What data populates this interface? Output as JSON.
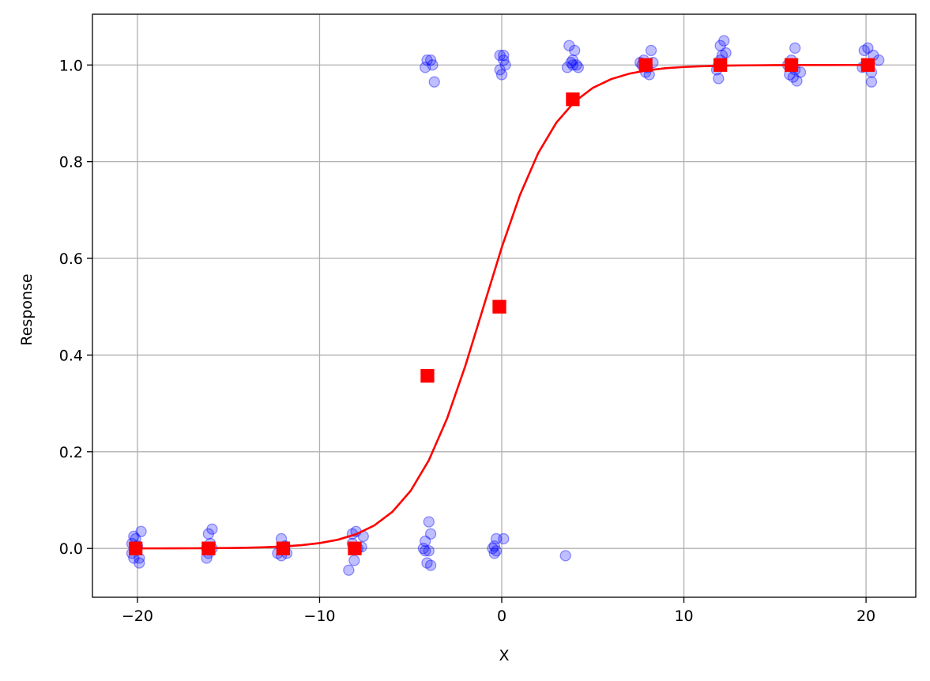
{
  "chart_data": {
    "type": "scatter",
    "xlabel": "X",
    "ylabel": "Response",
    "xlim": [
      -22.47,
      22.73
    ],
    "ylim": [
      -0.101,
      1.105
    ],
    "xticks": [
      {
        "value": -20,
        "label": "−20"
      },
      {
        "value": -10,
        "label": "−10"
      },
      {
        "value": 0,
        "label": "0"
      },
      {
        "value": 10,
        "label": "10"
      },
      {
        "value": 20,
        "label": "20"
      }
    ],
    "yticks": [
      {
        "value": 0,
        "label": "0.0"
      },
      {
        "value": 0.2,
        "label": "0.2"
      },
      {
        "value": 0.4,
        "label": "0.4"
      },
      {
        "value": 0.6,
        "label": "0.6"
      },
      {
        "value": 0.8,
        "label": "0.8"
      },
      {
        "value": 1,
        "label": "1.0"
      }
    ],
    "grid": true,
    "series": [
      {
        "type": "scatter",
        "marker": "circle",
        "color": "#0000ff",
        "alpha": 0.25,
        "x": [
          -20.3,
          -20.2,
          -20.1,
          -19.9,
          -20.0,
          -19.8,
          -20.3,
          -19.9,
          -20.2,
          -16.2,
          -16.1,
          -15.9,
          -16.0,
          -16.1,
          -15.9,
          -16.2,
          -12.3,
          -12.1,
          -12.0,
          -11.8,
          -12.1,
          -11.9,
          -8.4,
          -8.2,
          -8.0,
          -7.6,
          -8.1,
          -7.9,
          -7.7,
          -8.2,
          -4.0,
          -3.9,
          -4.2,
          -4.1,
          -3.9,
          -4.3,
          -4.0,
          -4.2,
          -4.1,
          -3.9,
          -4.2,
          -3.8,
          -3.7,
          -0.3,
          0.1,
          -0.4,
          -0.4,
          -0.5,
          -0.3,
          -0.1,
          0.1,
          0.2,
          -0.1,
          0.0,
          0.1,
          3.5,
          3.7,
          4.0,
          3.6,
          3.9,
          4.1,
          3.8,
          4.2,
          3.9,
          7.6,
          7.8,
          8.1,
          8.2,
          7.9,
          8.0,
          7.7,
          8.3,
          11.8,
          11.9,
          12.0,
          12.2,
          12.1,
          12.3,
          12.0,
          11.9,
          15.8,
          16.1,
          16.2,
          16.4,
          15.9,
          16.0,
          16.1,
          15.7,
          19.9,
          20.1,
          20.3,
          20.7,
          20.3,
          20.0,
          19.8,
          20.4
        ],
        "values": [
          0.01,
          -0.02,
          0.02,
          -0.03,
          0.005,
          0.035,
          -0.01,
          -0.02,
          0.025,
          -0.02,
          0.03,
          0.04,
          0.01,
          -0.01,
          0.0,
          0.0,
          -0.01,
          0.02,
          0.0,
          -0.01,
          -0.015,
          0.005,
          -0.045,
          0.03,
          0.035,
          0.025,
          -0.025,
          0.0,
          0.003,
          0.01,
          0.055,
          0.03,
          0.015,
          -0.03,
          -0.035,
          0.0,
          -0.005,
          -0.005,
          1.01,
          1.01,
          0.995,
          1.0,
          0.965,
          0.02,
          0.02,
          0.005,
          -0.01,
          0.0,
          -0.005,
          1.02,
          1.02,
          1.0,
          0.99,
          0.98,
          1.01,
          -0.015,
          1.04,
          1.03,
          0.995,
          1.01,
          1.0,
          1.005,
          0.995,
          1.0,
          1.005,
          1.01,
          0.98,
          1.03,
          0.985,
          0.995,
          1.0,
          1.005,
          0.99,
          0.972,
          1.04,
          1.05,
          1.02,
          1.025,
          1.01,
          1.0,
          0.98,
          1.035,
          0.967,
          0.985,
          1.01,
          0.975,
          0.99,
          1.0,
          1.03,
          1.035,
          0.965,
          1.01,
          0.985,
          1.0,
          0.995,
          1.02
        ]
      },
      {
        "type": "line",
        "color": "#ff0000",
        "x": [
          -20,
          -19,
          -18,
          -17,
          -16,
          -15,
          -14,
          -13,
          -12,
          -11,
          -10,
          -9,
          -8,
          -7,
          -6,
          -5,
          -4,
          -3,
          -2,
          -1,
          0,
          1,
          2,
          3,
          4,
          5,
          6,
          7,
          8,
          9,
          10,
          11,
          12,
          13,
          14,
          15,
          16,
          17,
          18,
          19,
          20
        ],
        "values": [
          0.0001,
          0.0001,
          0.0002,
          0.0003,
          0.0006,
          0.0009,
          0.0015,
          0.0025,
          0.0041,
          0.0067,
          0.011,
          0.018,
          0.0293,
          0.0474,
          0.0759,
          0.1192,
          0.1824,
          0.2689,
          0.3775,
          0.5,
          0.6225,
          0.7311,
          0.8176,
          0.8808,
          0.9241,
          0.9526,
          0.9707,
          0.982,
          0.989,
          0.9933,
          0.9959,
          0.9975,
          0.9985,
          0.9991,
          0.9994,
          0.9997,
          0.9998,
          0.9999,
          0.9999,
          1.0,
          1.0
        ]
      },
      {
        "type": "scatter",
        "marker": "square",
        "color": "#ff0000",
        "alpha": 1,
        "x": [
          -20.1,
          -16.1,
          -12.0,
          -8.07,
          -4.08,
          -0.13,
          3.9,
          7.9,
          12.0,
          15.9,
          20.1
        ],
        "values": [
          0,
          0,
          0,
          0,
          0.357,
          0.5,
          0.929,
          1,
          1,
          1,
          1
        ]
      }
    ]
  }
}
